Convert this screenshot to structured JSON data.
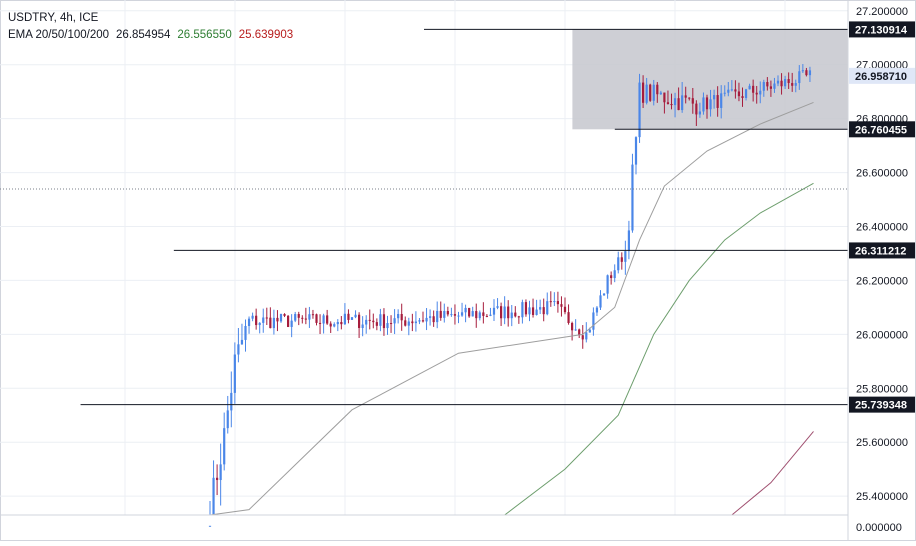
{
  "header": {
    "symbol_line": "USDTRY, 4h, ICE",
    "ema_label": "EMA 20/50/100/200",
    "ema_values": [
      {
        "text": "26.854954",
        "color": "#131722"
      },
      {
        "text": "26.556550",
        "color": "#2e7d32"
      },
      {
        "text": "25.639903",
        "color": "#b71c1c"
      }
    ]
  },
  "colors": {
    "bull": "#4a86e8",
    "bear": "#a61c3c",
    "ema20": "#9e9e9e",
    "ema50": "#6d9e6d",
    "ema100": "#a05070",
    "zone_fill": "#c9cad0",
    "level_line": "#131722",
    "price_label_bg": "#131722",
    "current_label_bg": "#dfe7f7",
    "axis_text": "#131722",
    "grid": "#eceff4",
    "border": "#d1d4dc"
  },
  "chart_data": {
    "type": "candlestick",
    "symbol": "USDTRY",
    "timeframe": "4h",
    "source": "ICE",
    "y_axis": {
      "ticks": [
        27.2,
        27.0,
        26.8,
        26.6,
        26.4,
        26.2,
        26.0,
        25.8,
        25.6,
        25.4
      ],
      "tick_labels": [
        "27.200000",
        "27.000000",
        "26.800000",
        "26.600000",
        "26.400000",
        "26.200000",
        "26.000000",
        "25.800000",
        "25.600000",
        "25.400000"
      ],
      "ylim": [
        25.33,
        27.24
      ],
      "bottom_label": "0.000000"
    },
    "levels": [
      {
        "value": 27.130914,
        "label": "27.130914",
        "start_fraction": 0.5
      },
      {
        "value": 26.760455,
        "label": "26.760455",
        "start_fraction": 0.725
      },
      {
        "value": 26.311212,
        "label": "26.311212",
        "start_fraction": 0.205
      },
      {
        "value": 25.739348,
        "label": "25.739348",
        "start_fraction": 0.095
      }
    ],
    "current_price": {
      "value": 26.95871,
      "label": "26.958710"
    },
    "zone": {
      "top": 27.130914,
      "bottom": 26.760455,
      "start_fraction": 0.675
    },
    "segments": [
      {
        "from": 0,
        "to": 4,
        "start": 25.35,
        "end": 25.62,
        "amp": 0.12,
        "noise": 0.1
      },
      {
        "from": 4,
        "to": 7,
        "start": 25.62,
        "end": 25.9,
        "amp": 0.14,
        "noise": 0.12
      },
      {
        "from": 7,
        "to": 11,
        "start": 25.9,
        "end": 26.05,
        "amp": 0.1,
        "noise": 0.08
      },
      {
        "from": 11,
        "to": 53,
        "start": 26.05,
        "end": 26.05,
        "amp": 0.06,
        "noise": 0.04
      },
      {
        "from": 53,
        "to": 97,
        "start": 26.05,
        "end": 26.1,
        "amp": 0.06,
        "noise": 0.04
      },
      {
        "from": 97,
        "to": 106,
        "start": 26.1,
        "end": 26.0,
        "amp": 0.06,
        "noise": 0.04
      },
      {
        "from": 106,
        "to": 112,
        "start": 26.0,
        "end": 26.2,
        "amp": 0.06,
        "noise": 0.04
      },
      {
        "from": 112,
        "to": 117,
        "start": 26.2,
        "end": 26.31,
        "amp": 0.05,
        "noise": 0.03
      },
      {
        "from": 117,
        "to": 121,
        "start": 26.31,
        "end": 26.85,
        "amp": 0.12,
        "noise": 0.05
      },
      {
        "from": 121,
        "to": 138,
        "start": 26.9,
        "end": 26.85,
        "amp": 0.08,
        "noise": 0.05
      },
      {
        "from": 138,
        "to": 161,
        "start": 26.85,
        "end": 26.93,
        "amp": 0.06,
        "noise": 0.04
      },
      {
        "from": 161,
        "to": 170,
        "start": 26.93,
        "end": 26.96,
        "amp": 0.06,
        "noise": 0.04
      }
    ],
    "ema_series": [
      {
        "id": "ema20",
        "value": 26.854954,
        "points": [
          [
            0,
            25.3
          ],
          [
            11,
            25.35
          ],
          [
            40,
            25.72
          ],
          [
            70,
            25.93
          ],
          [
            105,
            26.0
          ],
          [
            114,
            26.1
          ],
          [
            121,
            26.35
          ],
          [
            128,
            26.55
          ],
          [
            140,
            26.68
          ],
          [
            155,
            26.78
          ],
          [
            170,
            26.86
          ]
        ]
      },
      {
        "id": "ema50",
        "value": 26.55655,
        "points": [
          [
            83,
            25.33
          ],
          [
            100,
            25.5
          ],
          [
            115,
            25.7
          ],
          [
            125,
            26.0
          ],
          [
            135,
            26.2
          ],
          [
            145,
            26.35
          ],
          [
            155,
            26.45
          ],
          [
            170,
            26.56
          ]
        ]
      },
      {
        "id": "ema100",
        "value": 25.639903,
        "points": [
          [
            147,
            25.33
          ],
          [
            158,
            25.45
          ],
          [
            170,
            25.64
          ]
        ]
      }
    ]
  }
}
